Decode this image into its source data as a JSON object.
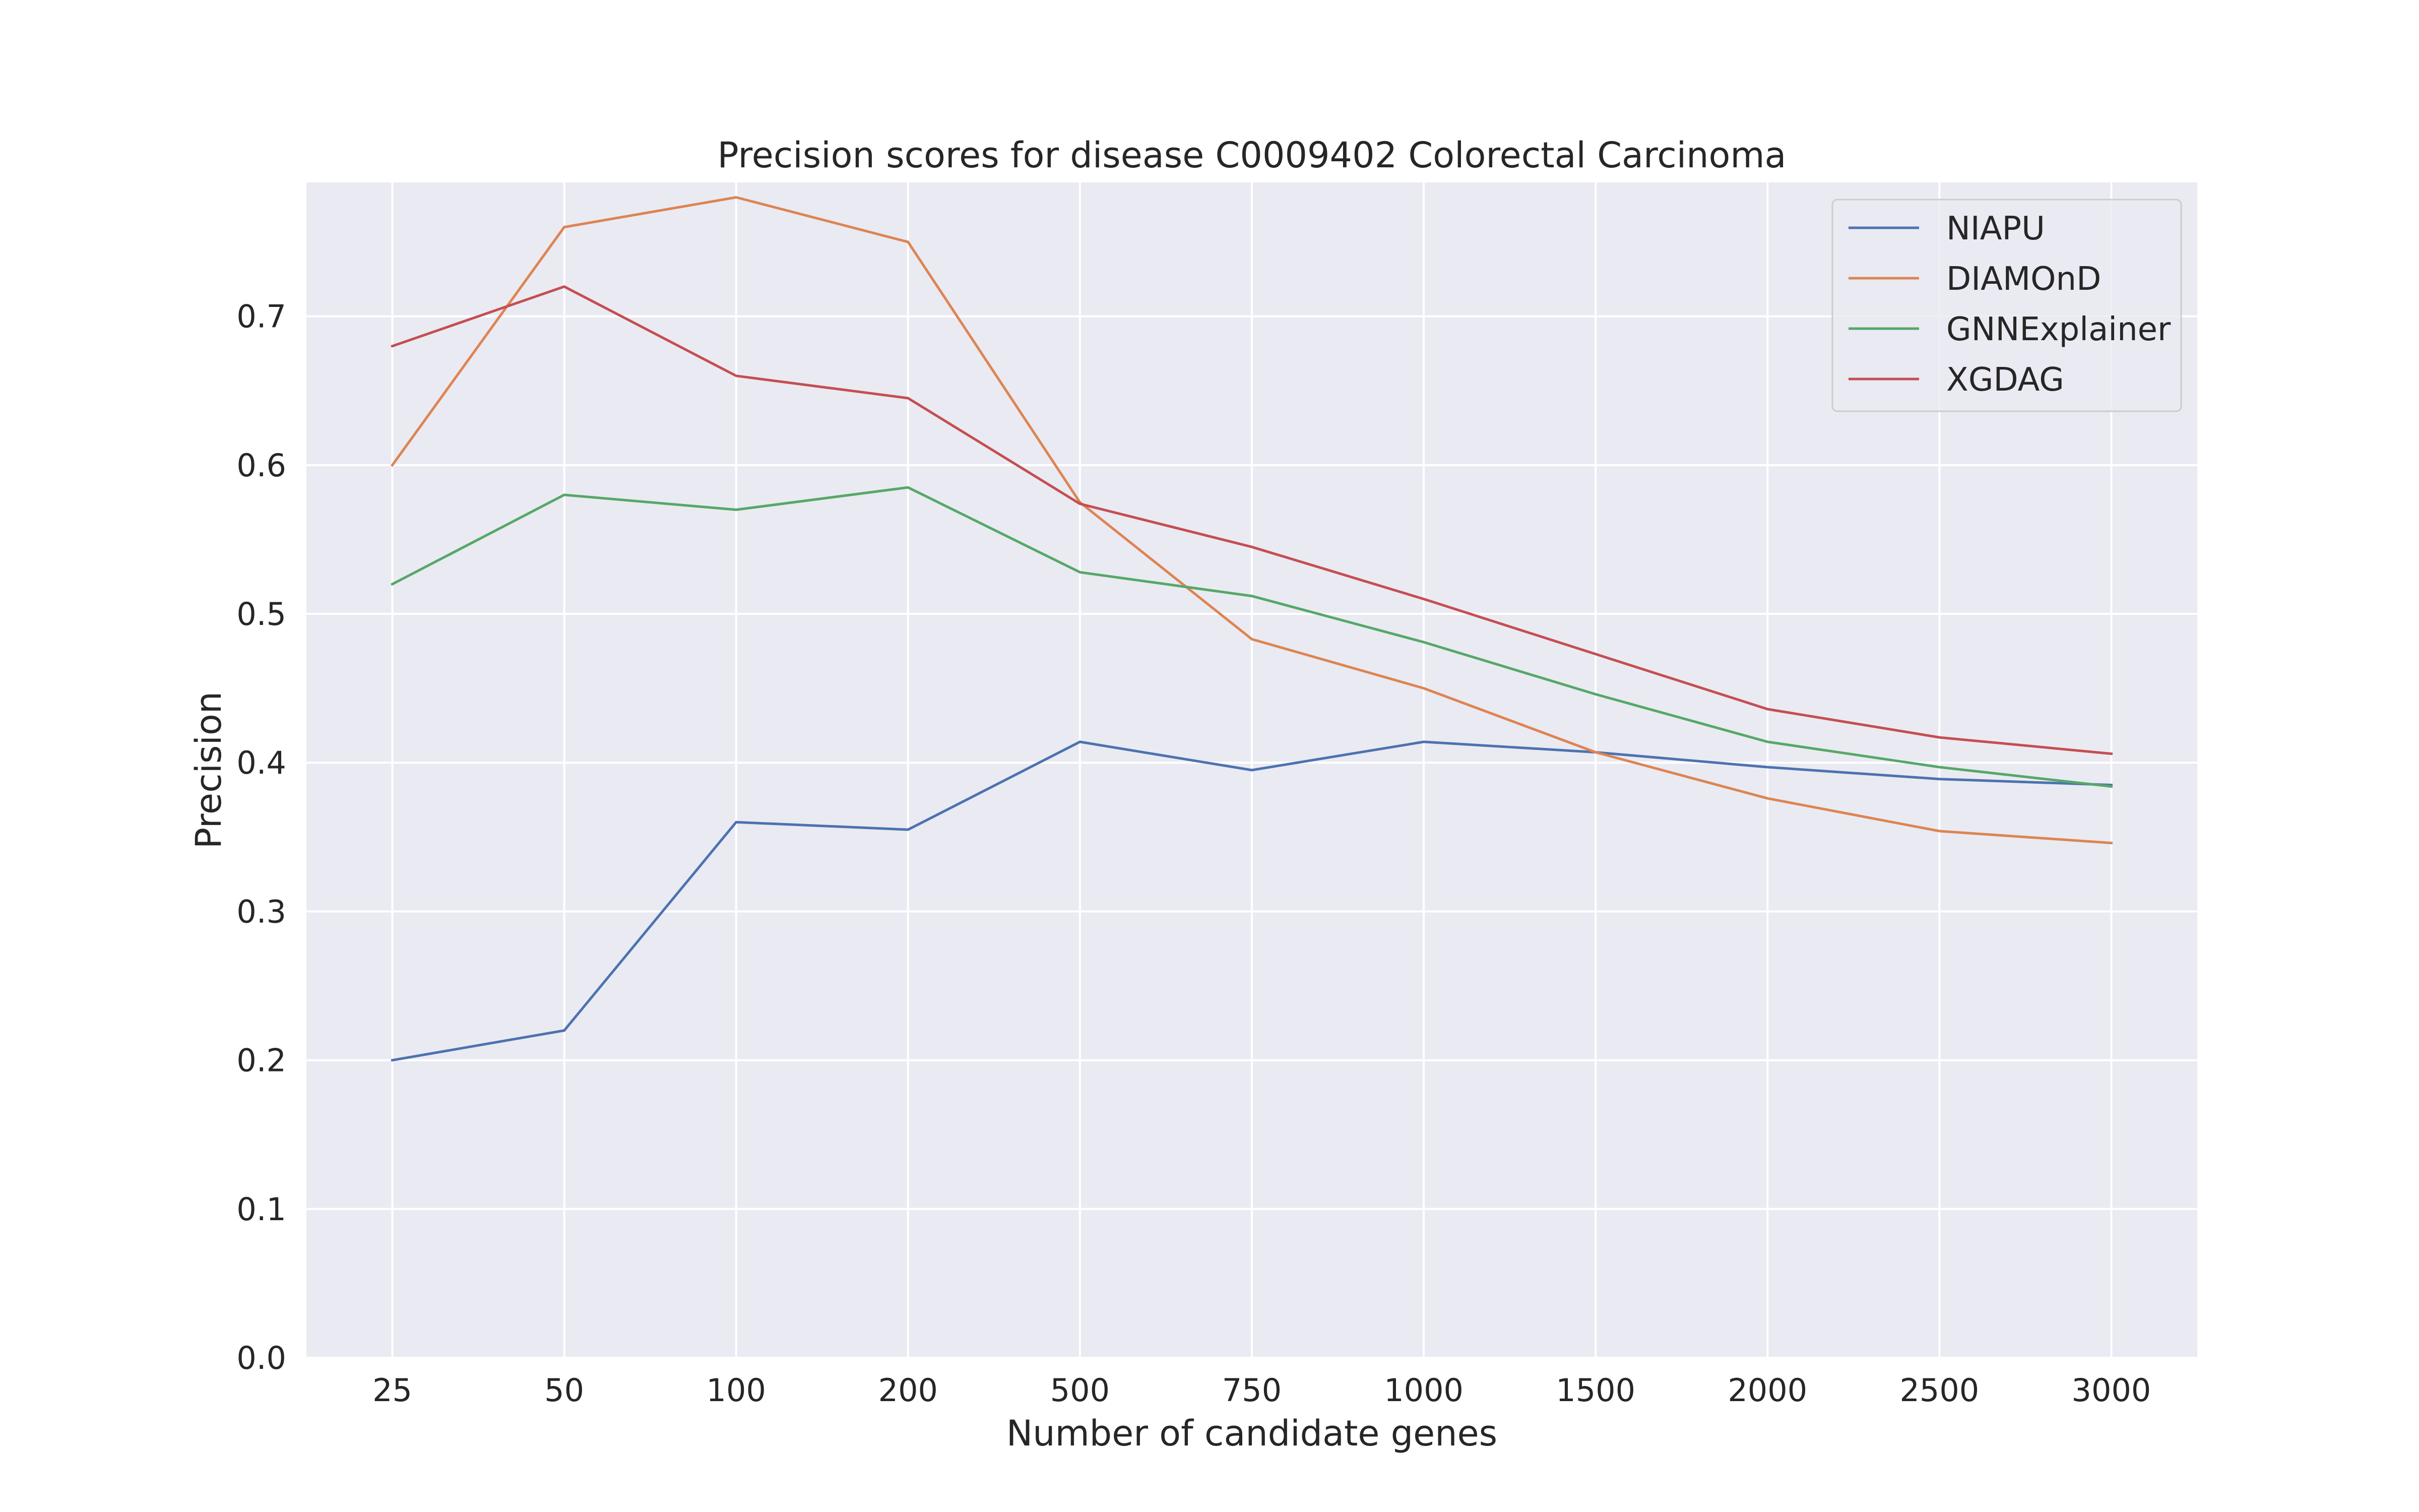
{
  "chart_data": {
    "type": "line",
    "title": "Precision scores for disease C0009402 Colorectal Carcinoma",
    "xlabel": "Number of candidate genes",
    "ylabel": "Precision",
    "categories": [
      "25",
      "50",
      "100",
      "200",
      "500",
      "750",
      "1000",
      "1500",
      "2000",
      "2500",
      "3000"
    ],
    "ylim": [
      0,
      0.79
    ],
    "yticks": [
      "0.0",
      "0.1",
      "0.2",
      "0.3",
      "0.4",
      "0.5",
      "0.6",
      "0.7"
    ],
    "grid": true,
    "legend_position": "top-right",
    "background_color": "#eaeaf2",
    "grid_color": "#ffffff",
    "series": [
      {
        "name": "NIAPU",
        "color": "#4c72b0",
        "values": [
          0.2,
          0.22,
          0.36,
          0.355,
          0.414,
          0.395,
          0.414,
          0.407,
          0.397,
          0.389,
          0.385
        ]
      },
      {
        "name": "DIAMOnD",
        "color": "#dd8452",
        "values": [
          0.6,
          0.76,
          0.78,
          0.75,
          0.575,
          0.483,
          0.45,
          0.407,
          0.376,
          0.354,
          0.346
        ]
      },
      {
        "name": "GNNExplainer",
        "color": "#55a868",
        "values": [
          0.52,
          0.58,
          0.57,
          0.585,
          0.528,
          0.512,
          0.481,
          0.446,
          0.414,
          0.397,
          0.384
        ]
      },
      {
        "name": "XGDAG",
        "color": "#c44e52",
        "values": [
          0.68,
          0.72,
          0.66,
          0.645,
          0.574,
          0.545,
          0.51,
          0.473,
          0.436,
          0.417,
          0.406
        ]
      }
    ]
  }
}
